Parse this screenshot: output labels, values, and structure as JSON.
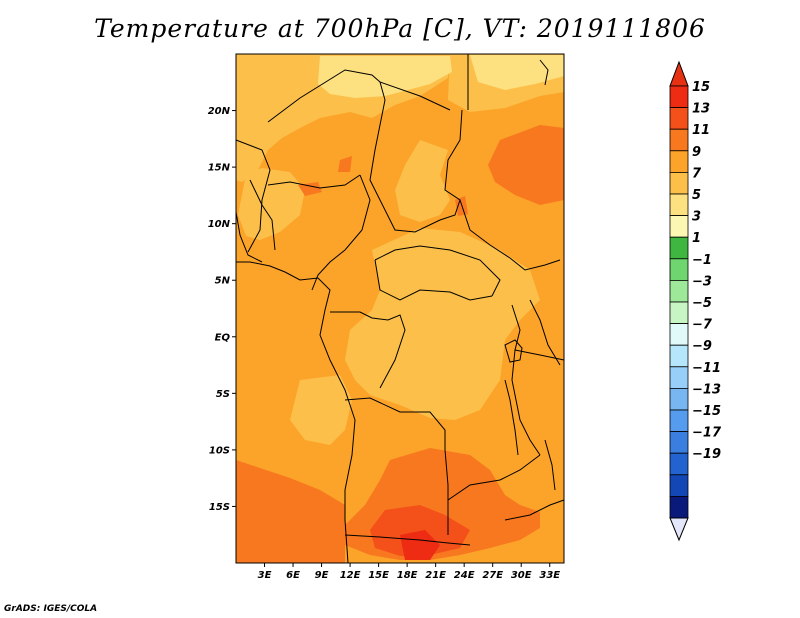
{
  "title": "Temperature at 700hPa [C], VT: 2019111806",
  "credit": "GrADS: IGES/COLA",
  "map": {
    "lon_range": [
      0,
      34.5
    ],
    "lat_range": [
      -20,
      25
    ],
    "lat_ticks": [
      {
        "value": 20,
        "label": "20N"
      },
      {
        "value": 15,
        "label": "15N"
      },
      {
        "value": 10,
        "label": "10N"
      },
      {
        "value": 5,
        "label": "5N"
      },
      {
        "value": 0,
        "label": "EQ"
      },
      {
        "value": -5,
        "label": "5S"
      },
      {
        "value": -10,
        "label": "10S"
      },
      {
        "value": -15,
        "label": "15S"
      }
    ],
    "lon_ticks": [
      {
        "value": 3,
        "label": "3E"
      },
      {
        "value": 6,
        "label": "6E"
      },
      {
        "value": 9,
        "label": "9E"
      },
      {
        "value": 12,
        "label": "12E"
      },
      {
        "value": 15,
        "label": "15E"
      },
      {
        "value": 18,
        "label": "18E"
      },
      {
        "value": 21,
        "label": "21E"
      },
      {
        "value": 24,
        "label": "24E"
      },
      {
        "value": 27,
        "label": "27E"
      },
      {
        "value": 30,
        "label": "30E"
      },
      {
        "value": 33,
        "label": "33E"
      }
    ],
    "background_color": "#fca329"
  },
  "colorbar": {
    "levels": [
      {
        "label": "15",
        "color": "#ee2b13"
      },
      {
        "label": "13",
        "color": "#f4501a"
      },
      {
        "label": "11",
        "color": "#f8781f"
      },
      {
        "label": "9",
        "color": "#fca329"
      },
      {
        "label": "7",
        "color": "#fcc04a"
      },
      {
        "label": "5",
        "color": "#fde07f"
      },
      {
        "label": "3",
        "color": "#fcf8b4"
      },
      {
        "label": "1",
        "color": "#3fb63f"
      },
      {
        "label": "−1",
        "color": "#6fd66f"
      },
      {
        "label": "−3",
        "color": "#9ee89a"
      },
      {
        "label": "−5",
        "color": "#c8f5c4"
      },
      {
        "label": "−7",
        "color": "#e1f9f9"
      },
      {
        "label": "−9",
        "color": "#b6e6fb"
      },
      {
        "label": "−11",
        "color": "#98cff8"
      },
      {
        "label": "−13",
        "color": "#78b6f2"
      },
      {
        "label": "−15",
        "color": "#559bee"
      },
      {
        "label": "−17",
        "color": "#3a7fe0"
      },
      {
        "label": "−19",
        "color": "#2263d0"
      }
    ],
    "extra_low_colors": [
      "#1447b6",
      "#0a1a7a",
      "#e4e6fb"
    ],
    "top_triangle_color": "#e63212"
  }
}
